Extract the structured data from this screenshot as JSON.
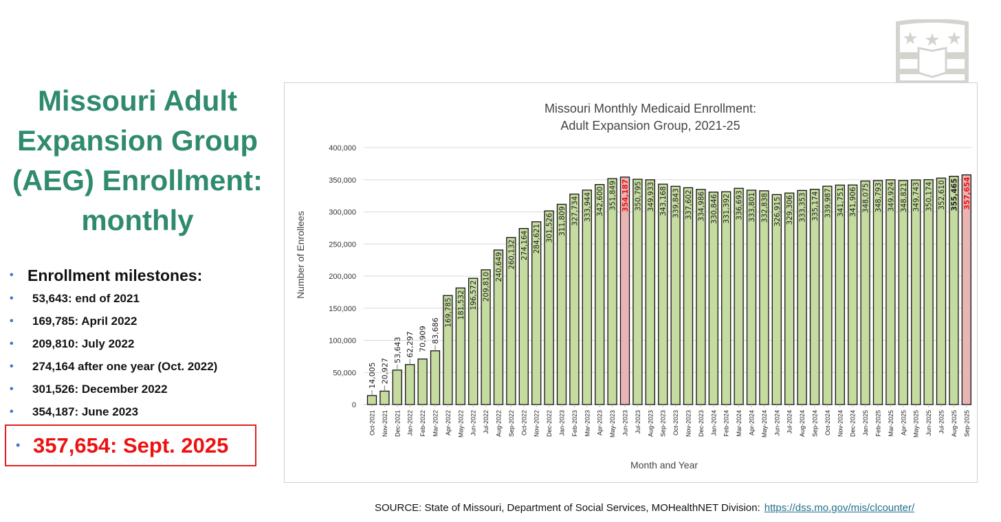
{
  "slide": {
    "title_lines": [
      "Missouri Adult",
      "Expansion Group",
      "(AEG) Enrollment:",
      "monthly"
    ],
    "milestones_heading": "Enrollment milestones:",
    "milestones": [
      "53,643: end of 2021",
      "169,785: April 2022",
      "209,810: July 2022",
      "274,164 after one year (Oct. 2022)",
      "301,526: December 2022",
      "354,187: June 2023"
    ],
    "highlight": "357,654: Sept. 2025",
    "source_text": "SOURCE: State of Missouri, Department of Social Services, MOHealthNET Division:",
    "source_link": "https://dss.mo.gov/mis/clcounter/"
  },
  "colors": {
    "title": "#2F8A6E",
    "bar": "#C5DBA0",
    "bar_highlight": "#E8B4B4",
    "highlight_text": "#EE1111"
  },
  "chart_data": {
    "type": "bar",
    "title": [
      "Missouri Monthly Medicaid Enrollment:",
      "Adult Expansion Group, 2021-25"
    ],
    "xlabel": "Month and Year",
    "ylabel": "Number of Enrollees",
    "ylim": [
      0,
      400000
    ],
    "yticks": [
      "0",
      "50,000",
      "100,000",
      "150,000",
      "200,000",
      "250,000",
      "300,000",
      "350,000",
      "400,000"
    ],
    "grid": true,
    "highlighted": [
      "Jun-2023",
      "Sep-2025"
    ],
    "categories": [
      "Oct-2021",
      "Nov-2021",
      "Dec-2021",
      "Jan-2022",
      "Feb-2022",
      "Mar-2022",
      "Apr-2022",
      "May-2022",
      "Jun-2022",
      "Jul-2022",
      "Aug-2022",
      "Sep-2022",
      "Oct-2022",
      "Nov-2022",
      "Dec-2022",
      "Jan-2023",
      "Feb-2023",
      "Mar-2023",
      "Apr-2023",
      "May-2023",
      "Jun-2023",
      "Jul-2023",
      "Aug-2023",
      "Sep-2023",
      "Oct-2023",
      "Nov-2023",
      "Dec-2023",
      "Jan-2024",
      "Feb-2024",
      "Mar-2024",
      "Apr-2024",
      "May-2024",
      "Jun-2024",
      "Jul-2024",
      "Aug-2024",
      "Sep-2024",
      "Oct-2024",
      "Nov-2024",
      "Dec-2024",
      "Jan-2025",
      "Feb-2025",
      "Mar-2025",
      "Apr-2025",
      "May-2025",
      "Jun-2025",
      "Jul-2025",
      "Aug-2025",
      "Sep-2025"
    ],
    "values": [
      14005,
      20927,
      53643,
      62297,
      70909,
      83686,
      169785,
      181532,
      196572,
      209810,
      240649,
      260132,
      274164,
      284621,
      301526,
      311809,
      327734,
      333944,
      342600,
      351849,
      354187,
      350795,
      349933,
      343168,
      339843,
      337602,
      334986,
      330846,
      331392,
      336693,
      333801,
      332838,
      326915,
      329306,
      333353,
      335174,
      339987,
      341751,
      341906,
      348075,
      348793,
      349924,
      348821,
      349743,
      350174,
      352610,
      355465,
      357654
    ]
  }
}
